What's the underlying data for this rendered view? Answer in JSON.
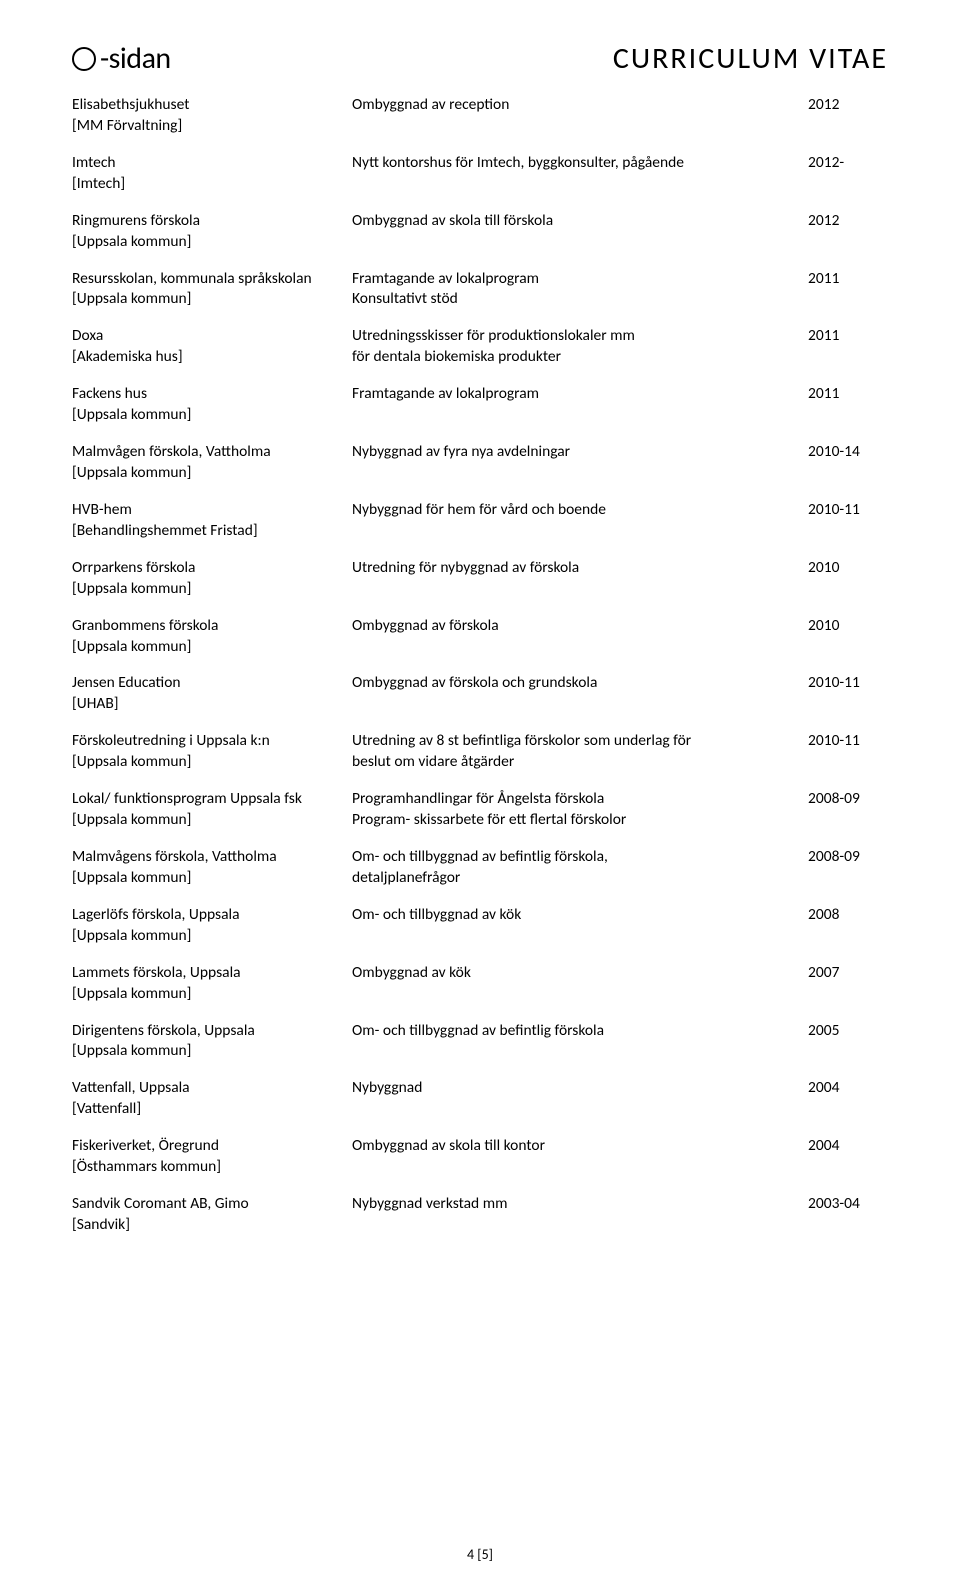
{
  "logo_text": "-sidan",
  "cv_title": "CURRICULUM VITAE",
  "page_number": "4 [5]",
  "entries": [
    {
      "title": "Elisabethsjukhuset",
      "client": "[MM Förvaltning]",
      "desc": "Ombyggnad av reception",
      "year": "2012"
    },
    {
      "title": "Imtech",
      "client": "[Imtech]",
      "desc": "Nytt kontorshus för Imtech, byggkonsulter, pågående",
      "year": "2012-"
    },
    {
      "title": "Ringmurens förskola",
      "client": "[Uppsala kommun]",
      "desc": "Ombyggnad av skola till förskola",
      "year": "2012"
    },
    {
      "title": "Resursskolan, kommunala språkskolan",
      "client": "[Uppsala kommun]",
      "desc": "Framtagande av lokalprogram\nKonsultativt stöd",
      "year": "2011"
    },
    {
      "title": "Doxa",
      "client": "[Akademiska hus]",
      "desc": "Utredningsskisser för produktionslokaler mm\nför dentala biokemiska produkter",
      "year": "2011"
    },
    {
      "title": "Fackens hus",
      "client": "[Uppsala kommun]",
      "desc": "Framtagande av lokalprogram",
      "year": "2011"
    },
    {
      "title": "Malmvågen förskola, Vattholma",
      "client": "[Uppsala kommun]",
      "desc": "Nybyggnad av fyra nya avdelningar",
      "year": "2010-14"
    },
    {
      "title": "HVB-hem",
      "client": "[Behandlingshemmet Fristad]",
      "desc": "Nybyggnad för hem för vård och boende",
      "year": "2010-11"
    },
    {
      "title": "Orrparkens förskola",
      "client": "[Uppsala kommun]",
      "desc": "Utredning för nybyggnad av förskola",
      "year": "2010"
    },
    {
      "title": "Granbommens förskola",
      "client": "[Uppsala kommun]",
      "desc": "Ombyggnad av förskola",
      "year": "2010"
    },
    {
      "title": "Jensen Education",
      "client": "[UHAB]",
      "desc": "Ombyggnad av förskola och grundskola",
      "year": "2010-11"
    },
    {
      "title": "Förskoleutredning i Uppsala k:n",
      "client": "[Uppsala kommun]",
      "desc": "Utredning av 8 st befintliga förskolor som underlag för\nbeslut om vidare åtgärder",
      "year": "2010-11"
    },
    {
      "title": "Lokal/ funktionsprogram Uppsala fsk",
      "client": "[Uppsala kommun]",
      "desc": "Programhandlingar för Ångelsta förskola\nProgram- skissarbete för ett flertal förskolor",
      "year": "2008-09"
    },
    {
      "title": "Malmvågens förskola, Vattholma",
      "client": "[Uppsala kommun]",
      "desc": "Om- och tillbyggnad av befintlig förskola,\ndetaljplanefrågor",
      "year": "2008-09"
    },
    {
      "title": "Lagerlöfs förskola, Uppsala",
      "client": "[Uppsala kommun]",
      "desc": "Om- och tillbyggnad av kök",
      "year": "2008"
    },
    {
      "title": "Lammets förskola, Uppsala",
      "client": "[Uppsala kommun]",
      "desc": "Ombyggnad av kök",
      "year": "2007"
    },
    {
      "title": "Dirigentens förskola, Uppsala",
      "client": "[Uppsala kommun]",
      "desc": "Om- och tillbyggnad av befintlig förskola",
      "year": "2005"
    },
    {
      "title": "Vattenfall, Uppsala",
      "client": "[Vattenfall]",
      "desc": "Nybyggnad",
      "year": "2004"
    },
    {
      "title": "Fiskeriverket, Öregrund",
      "client": "[Östhammars kommun]",
      "desc": "Ombyggnad av skola till kontor",
      "year": "2004"
    },
    {
      "title": "Sandvik Coromant AB, Gimo",
      "client": "[Sandvik]",
      "desc": "Nybyggnad verkstad mm",
      "year": "2003-04"
    }
  ]
}
